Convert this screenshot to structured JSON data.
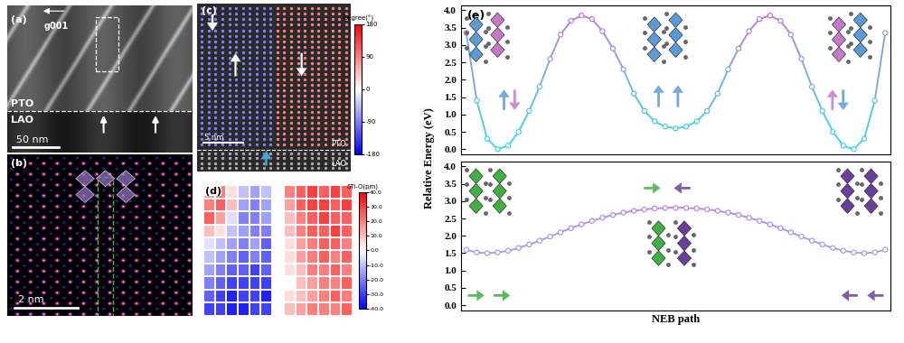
{
  "panels": {
    "a": {
      "label": "(a)",
      "vector": "g001",
      "upper_layer": "PTO",
      "lower_layer": "LAO",
      "scale_bar": "50 nm"
    },
    "b": {
      "label": "(b)",
      "scale_bar": "2 nm"
    },
    "c": {
      "label": "(c)",
      "scale_bar": "5 nm",
      "upper_layer": "PTO",
      "lower_layer": "LAO",
      "domain_angles": [
        -90,
        90
      ],
      "colorbar": {
        "title": "Degree(°)",
        "lim": [
          -180,
          180
        ],
        "ticks": [
          -180,
          -90,
          0,
          90,
          180
        ]
      }
    },
    "d": {
      "label": "(d)",
      "cells": [
        [
          15,
          20,
          5,
          -10,
          -15,
          -10,
          null,
          20,
          25,
          30,
          25,
          30,
          25
        ],
        [
          20,
          25,
          10,
          -15,
          -20,
          -15,
          null,
          15,
          25,
          30,
          30,
          25,
          30
        ],
        [
          25,
          15,
          -5,
          -20,
          -20,
          -15,
          null,
          10,
          20,
          25,
          30,
          25,
          25
        ],
        [
          10,
          5,
          -10,
          -15,
          -20,
          -20,
          null,
          10,
          20,
          25,
          25,
          30,
          25
        ],
        [
          -5,
          -10,
          -15,
          -20,
          -15,
          -25,
          null,
          5,
          15,
          20,
          25,
          25,
          20
        ],
        [
          -10,
          -15,
          -20,
          -25,
          -20,
          -25,
          null,
          5,
          15,
          20,
          25,
          20,
          25
        ],
        [
          -15,
          -20,
          -25,
          -25,
          -30,
          -25,
          null,
          5,
          10,
          20,
          20,
          25,
          20
        ],
        [
          -20,
          -25,
          -30,
          -30,
          -30,
          -30,
          null,
          0,
          10,
          15,
          20,
          20,
          25
        ],
        [
          -25,
          -30,
          -35,
          -30,
          -30,
          -35,
          null,
          5,
          10,
          15,
          20,
          25,
          20
        ],
        [
          -30,
          -30,
          -35,
          -35,
          -30,
          -30,
          null,
          10,
          15,
          20,
          20,
          20,
          25
        ]
      ],
      "colorbar": {
        "title": "δTi-O(pm)",
        "lim": [
          -40,
          40
        ],
        "ticks": [
          {
            "value": -40,
            "label": "-40.0"
          },
          {
            "value": -30,
            "label": "-30.0"
          },
          {
            "value": -20,
            "label": "-20.0"
          },
          {
            "value": -10,
            "label": "-10.0"
          },
          {
            "value": 0,
            "label": "0.0"
          },
          {
            "value": 10,
            "label": "10.0"
          },
          {
            "value": 20,
            "label": "20.0"
          },
          {
            "value": 30,
            "label": "30.0"
          },
          {
            "value": 40,
            "label": "40.0"
          }
        ]
      }
    },
    "e": {
      "label": "(e)",
      "ylabel": "Relative Energy (eV)",
      "xlabel": "NEB path"
    }
  },
  "chart_data": [
    {
      "type": "line",
      "x": [
        0,
        1,
        2,
        3,
        4,
        5,
        6,
        7,
        8,
        9,
        10,
        11,
        12,
        13,
        14,
        15,
        16,
        17,
        18,
        19,
        20,
        21,
        22,
        23,
        24,
        25,
        26,
        27,
        28,
        29,
        30,
        31,
        32,
        33,
        34,
        35,
        36,
        37,
        38,
        39,
        40
      ],
      "xlim": [
        -0.5,
        40.5
      ],
      "ylim": [
        -0.15,
        4.15
      ],
      "yticks": [
        {
          "value": 0,
          "label": "0.0"
        },
        {
          "value": 0.5,
          "label": "0.5"
        },
        {
          "value": 1,
          "label": "1.0"
        },
        {
          "value": 1.5,
          "label": "1.5"
        },
        {
          "value": 2,
          "label": "2.0"
        },
        {
          "value": 2.5,
          "label": "2.5"
        },
        {
          "value": 3,
          "label": "3.0"
        },
        {
          "value": 3.5,
          "label": "3.5"
        },
        {
          "value": 4,
          "label": "4.0"
        }
      ],
      "tick_labels": "y",
      "series": [
        {
          "color": "#40d8e8",
          "marker": "o",
          "line_style": "solid",
          "values": [
            3.35,
            1.4,
            0.3,
            0.0,
            0.1,
            0.5,
            1.1,
            1.8,
            2.6,
            3.3,
            3.7,
            3.85,
            3.75,
            3.4,
            2.9,
            2.3,
            1.6,
            1.1,
            0.8,
            0.65,
            0.6,
            0.65,
            0.8,
            1.1,
            1.6,
            2.3,
            2.9,
            3.4,
            3.75,
            3.85,
            3.7,
            3.3,
            2.6,
            1.8,
            1.1,
            0.5,
            0.1,
            0.0,
            0.3,
            1.4,
            3.35
          ]
        }
      ]
    },
    {
      "type": "line",
      "x": [
        0,
        1,
        2,
        3,
        4,
        5,
        6,
        7,
        8,
        9,
        10,
        11,
        12,
        13,
        14,
        15,
        16,
        17,
        18,
        19,
        20,
        21,
        22,
        23,
        24,
        25,
        26,
        27,
        28,
        29,
        30,
        31,
        32,
        33,
        34,
        35,
        36,
        37,
        38,
        39,
        40
      ],
      "xlim": [
        -0.5,
        40.5
      ],
      "ylim": [
        -0.15,
        4.15
      ],
      "yticks": [
        {
          "value": 0,
          "label": "0.0"
        },
        {
          "value": 0.5,
          "label": "0.5"
        },
        {
          "value": 1,
          "label": "1.0"
        },
        {
          "value": 1.5,
          "label": "1.5"
        },
        {
          "value": 2,
          "label": "2.0"
        },
        {
          "value": 2.5,
          "label": "2.5"
        },
        {
          "value": 3,
          "label": "3.0"
        },
        {
          "value": 3.5,
          "label": "3.5"
        },
        {
          "value": 4,
          "label": "4.0"
        }
      ],
      "tick_labels": "y",
      "series": [
        {
          "color": "#9ab0e8",
          "marker": "o",
          "line_style": "solid",
          "values": [
            1.6,
            1.52,
            1.5,
            1.52,
            1.57,
            1.65,
            1.75,
            1.86,
            1.98,
            2.1,
            2.22,
            2.33,
            2.43,
            2.52,
            2.6,
            2.67,
            2.72,
            2.76,
            2.79,
            2.8,
            2.8,
            2.8,
            2.79,
            2.76,
            2.72,
            2.67,
            2.6,
            2.52,
            2.43,
            2.33,
            2.22,
            2.1,
            1.98,
            1.86,
            1.75,
            1.65,
            1.57,
            1.52,
            1.5,
            1.52,
            1.6
          ]
        }
      ]
    }
  ]
}
